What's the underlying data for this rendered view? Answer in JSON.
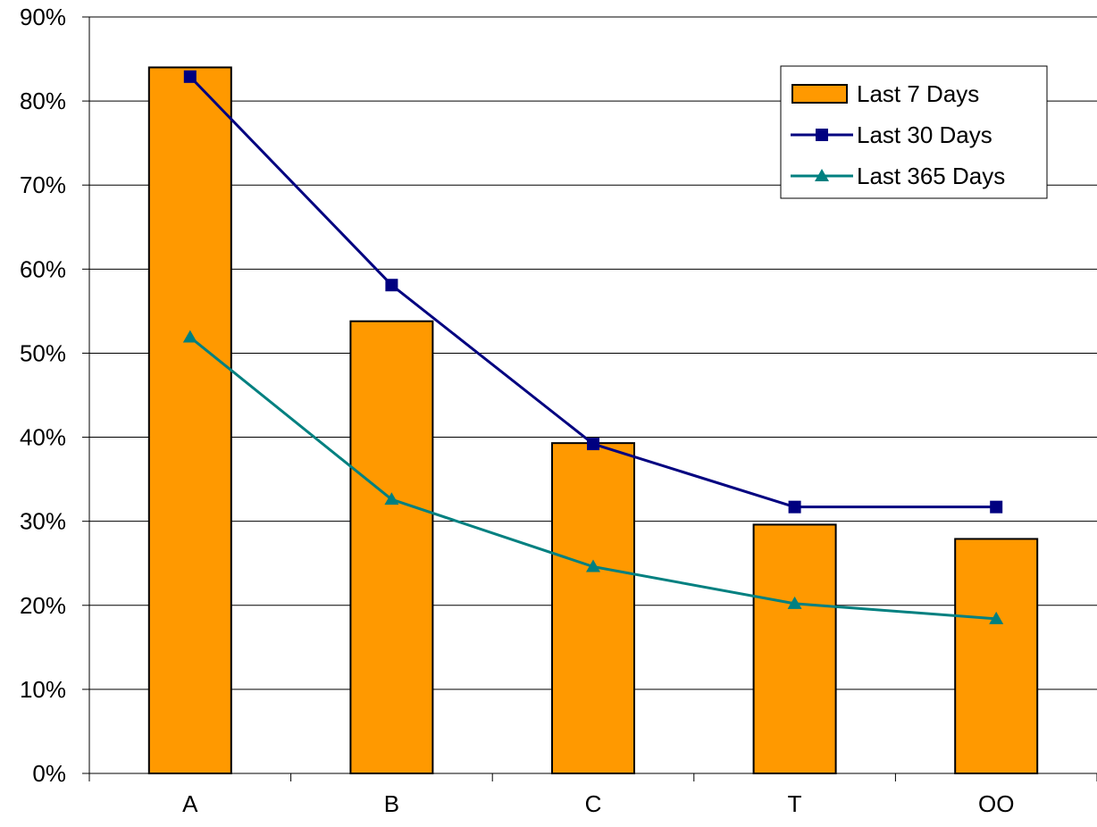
{
  "chart_data": {
    "type": "bar",
    "title": "",
    "xlabel": "",
    "ylabel": "",
    "categories": [
      "A",
      "B",
      "C",
      "T",
      "OO"
    ],
    "ylim": [
      0,
      90
    ],
    "y_ticks": [
      0,
      10,
      20,
      30,
      40,
      50,
      60,
      70,
      80,
      90
    ],
    "y_tick_format": "percent",
    "grid": "horizontal",
    "legend_position": "top-right",
    "series": [
      {
        "name": "Last 7 Days",
        "type": "bar",
        "values": [
          84,
          53.8,
          39.3,
          29.6,
          27.9
        ],
        "color": "#FF9900",
        "edge_color": "#000000"
      },
      {
        "name": "Last 30 Days",
        "type": "line",
        "marker": "square",
        "values": [
          82.9,
          58.1,
          39.2,
          31.7,
          31.7
        ],
        "color": "#000080"
      },
      {
        "name": "Last 365 Days",
        "type": "line",
        "marker": "triangle",
        "values": [
          51.9,
          32.6,
          24.6,
          20.2,
          18.4
        ],
        "color": "#008080"
      }
    ]
  }
}
